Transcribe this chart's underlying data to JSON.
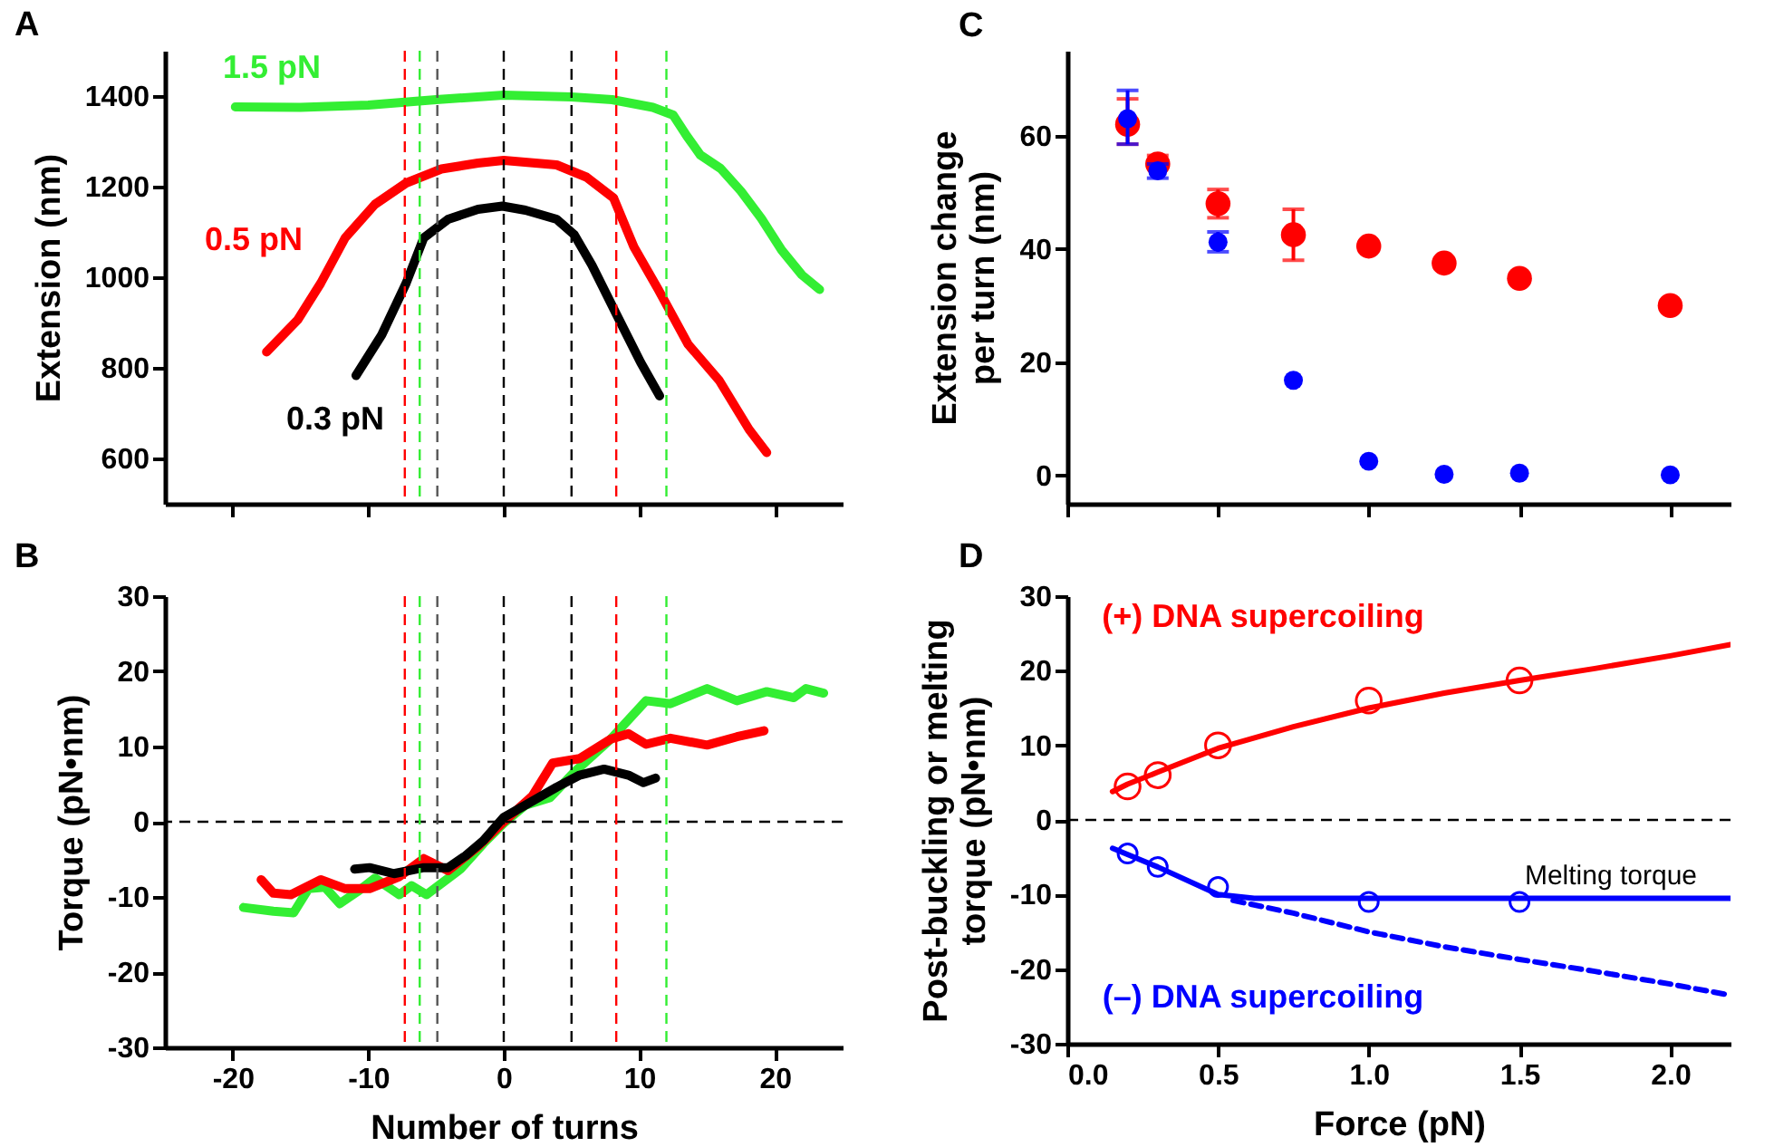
{
  "chart_data": [
    {
      "type": "line",
      "title": "A",
      "ylabel": "Extension (nm)",
      "xlim": [
        -25,
        25
      ],
      "xticks": [
        -20,
        -10,
        0,
        10,
        20
      ],
      "ylim": [
        500,
        1500
      ],
      "yticks": [
        600,
        800,
        1000,
        1200,
        1400
      ],
      "tick_labels": "y",
      "series": [
        {
          "name": "1.5 pN",
          "color": "#33ee33",
          "x": [
            -19.8,
            -15,
            -10,
            -5,
            0,
            5,
            8,
            11,
            12.5,
            13.5,
            14.5,
            16,
            17.5,
            19,
            20.5,
            22,
            23.3
          ],
          "values": [
            1376,
            1375,
            1380,
            1392,
            1402,
            1398,
            1392,
            1375,
            1358,
            1312,
            1270,
            1240,
            1190,
            1130,
            1060,
            1005,
            973
          ]
        },
        {
          "name": "0.5 pN",
          "color": "#ff0000",
          "x": [
            -17.5,
            -15.2,
            -13.5,
            -11.7,
            -9.5,
            -7.2,
            -4.6,
            -1.9,
            0,
            3.9,
            6.1,
            8.1,
            9.6,
            11.4,
            13.6,
            15.9,
            18.1,
            19.4
          ],
          "values": [
            835,
            906,
            987,
            1087,
            1161,
            1208,
            1239,
            1252,
            1258,
            1248,
            1221,
            1175,
            1067,
            973,
            852,
            772,
            664,
            613
          ]
        },
        {
          "name": "0.3 pN",
          "color": "#000000",
          "x": [
            -10.9,
            -9,
            -7.2,
            -5.9,
            -4.1,
            -1.9,
            -0.1,
            1.6,
            3.9,
            5.2,
            6.5,
            8.3,
            10.1,
            11.5
          ],
          "values": [
            783,
            873,
            987,
            1087,
            1128,
            1150,
            1157,
            1148,
            1128,
            1094,
            1027,
            919,
            812,
            738
          ]
        }
      ],
      "ref_lines": [
        {
          "axis": "x",
          "value": -7.3,
          "color": "#ff0000",
          "line_style": "dashed"
        },
        {
          "axis": "x",
          "value": 8.3,
          "color": "#ff0000",
          "line_style": "dashed"
        },
        {
          "axis": "x",
          "value": -6.2,
          "color": "#33ee33",
          "line_style": "dashed"
        },
        {
          "axis": "x",
          "value": 12,
          "color": "#33ee33",
          "line_style": "dashed"
        },
        {
          "axis": "x",
          "value": -4.9,
          "color": "#555555",
          "line_style": "dashed"
        },
        {
          "axis": "x",
          "value": 5,
          "color": "#000000",
          "line_style": "dashed"
        },
        {
          "axis": "x",
          "value": 0,
          "color": "#000000",
          "line_style": "dashed"
        }
      ]
    },
    {
      "type": "line",
      "title": "B",
      "xlabel": "Number of turns",
      "ylabel": "Torque (pN•nm)",
      "xlim": [
        -25,
        25
      ],
      "xticks": [
        -20,
        -10,
        0,
        10,
        20
      ],
      "ylim": [
        -30,
        30
      ],
      "yticks": [
        -30,
        -20,
        -10,
        0,
        10,
        20,
        30
      ],
      "series": [
        {
          "color": "#33ee33",
          "x": [
            -19.2,
            -17,
            -15.5,
            -14.4,
            -13.2,
            -12.1,
            -10.8,
            -9.5,
            -7.7,
            -6.8,
            -5.7,
            -3.2,
            -1.5,
            0,
            1.6,
            3.4,
            5.2,
            7.9,
            10.5,
            12.3,
            15,
            17.2,
            19.4,
            21.4,
            22.3,
            23.6
          ],
          "values": [
            -11.4,
            -11.9,
            -12.1,
            -8.9,
            -8.7,
            -10.9,
            -9.3,
            -7.5,
            -9.7,
            -8.5,
            -9.7,
            -6.3,
            -2.9,
            -0.2,
            2.2,
            3.2,
            6.6,
            11,
            16.1,
            15.7,
            17.7,
            16.1,
            17.3,
            16.5,
            17.7,
            17.1
          ]
        },
        {
          "color": "#ff0000",
          "x": [
            -17.9,
            -17,
            -15.7,
            -13.5,
            -11.7,
            -9.9,
            -7.7,
            -5.9,
            -4.1,
            -1.9,
            0,
            2.1,
            3.6,
            5.6,
            7.9,
            9.2,
            10.5,
            12.3,
            15,
            17.2,
            19.2
          ],
          "values": [
            -7.7,
            -9.5,
            -9.7,
            -7.7,
            -8.9,
            -8.9,
            -7.3,
            -4.9,
            -6.5,
            -3.3,
            0,
            3.4,
            7.8,
            8.4,
            11,
            11.7,
            10.3,
            11.1,
            10.2,
            11.3,
            12.1
          ]
        },
        {
          "color": "#000000",
          "x": [
            -11,
            -9.9,
            -8.1,
            -5.9,
            -4.1,
            -2.8,
            -1.5,
            0,
            1.6,
            3.9,
            5.6,
            7.4,
            9.2,
            10.3,
            11.2
          ],
          "values": [
            -6.3,
            -6.1,
            -6.9,
            -6.1,
            -6.1,
            -4.5,
            -2.5,
            0.6,
            2.2,
            4.6,
            6.2,
            7,
            6.2,
            5.2,
            5.8
          ]
        }
      ],
      "ref_lines": [
        {
          "axis": "y",
          "value": 0,
          "color": "#000000",
          "line_style": "dashed"
        },
        {
          "axis": "x",
          "value": -7.3,
          "color": "#ff0000",
          "line_style": "dashed"
        },
        {
          "axis": "x",
          "value": 8.3,
          "color": "#ff0000",
          "line_style": "dashed"
        },
        {
          "axis": "x",
          "value": -6.2,
          "color": "#33ee33",
          "line_style": "dashed"
        },
        {
          "axis": "x",
          "value": 12,
          "color": "#33ee33",
          "line_style": "dashed"
        },
        {
          "axis": "x",
          "value": -4.9,
          "color": "#555555",
          "line_style": "dashed"
        },
        {
          "axis": "x",
          "value": 5,
          "color": "#000000",
          "line_style": "dashed"
        },
        {
          "axis": "x",
          "value": 0,
          "color": "#000000",
          "line_style": "dashed"
        }
      ]
    },
    {
      "type": "scatter",
      "title": "C",
      "ylabel": "Extension change\nper turn (nm)",
      "xlim": [
        0,
        2.2
      ],
      "xticks": [
        0,
        0.5,
        1,
        1.5,
        2
      ],
      "ylim": [
        -5,
        75
      ],
      "yticks": [
        0,
        20,
        40,
        60
      ],
      "tick_labels": "y",
      "marker": "circle",
      "series": [
        {
          "color": "#ff0000",
          "x": [
            0.2,
            0.3,
            0.5,
            0.75,
            1,
            1.25,
            1.5,
            2
          ],
          "values": [
            62,
            55,
            48,
            42.5,
            40.5,
            37.5,
            34.8,
            30
          ],
          "errors": [
            [
              58.5,
              66.5
            ],
            [
              55,
              56.5
            ],
            [
              45.5,
              50.5
            ],
            [
              38,
              47
            ],
            null,
            null,
            null,
            null
          ]
        },
        {
          "color": "#0000ff",
          "x": [
            0.2,
            0.3,
            0.5,
            0.75,
            1,
            1.25,
            1.5,
            2
          ],
          "values": [
            63,
            53.8,
            41.2,
            16.8,
            2.5,
            0.2,
            0.4,
            0.1
          ],
          "errors": [
            [
              58.5,
              68
            ],
            [
              52.5,
              55
            ],
            [
              39.5,
              43
            ],
            null,
            null,
            null,
            null,
            null
          ]
        }
      ]
    },
    {
      "type": "scatter",
      "title": "D",
      "xlabel": "Force (pN)",
      "ylabel": "Post-buckling  or melting\ntorque (pN•nm)",
      "xlim": [
        0,
        2.2
      ],
      "xticks": [
        {
          "value": 0,
          "label": "0.0"
        },
        0.5,
        {
          "value": 1,
          "label": "1.0"
        },
        1.5,
        {
          "value": 2,
          "label": "2.0"
        }
      ],
      "ylim": [
        -30,
        30
      ],
      "yticks": [
        -30,
        -20,
        -10,
        0,
        10,
        20,
        30
      ],
      "marker": "circle",
      "series": [
        {
          "color": "#ff0000",
          "x": [
            0.2,
            0.3,
            0.5,
            1,
            1.5
          ],
          "values": [
            4.5,
            6,
            10,
            16,
            18.7
          ]
        },
        {
          "color": "#0000ff",
          "x": [
            0.2,
            0.3,
            0.5,
            1,
            1.5
          ],
          "values": [
            -4.5,
            -6.3,
            -9,
            -11,
            -11
          ]
        },
        {
          "type": "line",
          "marker": "none",
          "name": "(+) DNA supercoiling",
          "color": "#ff0000",
          "x": [
            0.15,
            0.2,
            0.3,
            0.5,
            0.75,
            1,
            1.25,
            1.5,
            1.75,
            2,
            2.2
          ],
          "values": [
            3.8,
            4.8,
            6.4,
            9.6,
            12.5,
            15,
            17,
            18.7,
            20.3,
            22,
            23.5
          ]
        },
        {
          "type": "line",
          "marker": "none",
          "name": "Melting torque",
          "color": "#0000ff",
          "x": [
            0.15,
            0.3,
            0.5,
            0.62,
            2.2
          ],
          "values": [
            -3.8,
            -6.3,
            -10,
            -10.5,
            -10.5
          ]
        },
        {
          "type": "line",
          "marker": "none",
          "name": "(–) DNA supercoiling",
          "color": "#0000ff",
          "line_style": "dashed",
          "x": [
            0.55,
            0.75,
            1,
            1.25,
            1.5,
            1.75,
            2,
            2.2
          ],
          "values": [
            -10.8,
            -12.5,
            -15,
            -17,
            -18.7,
            -20.3,
            -22,
            -23.5
          ]
        }
      ],
      "ref_lines": [
        {
          "axis": "y",
          "value": 0,
          "color": "#000000",
          "line_style": "dashed"
        }
      ]
    }
  ]
}
